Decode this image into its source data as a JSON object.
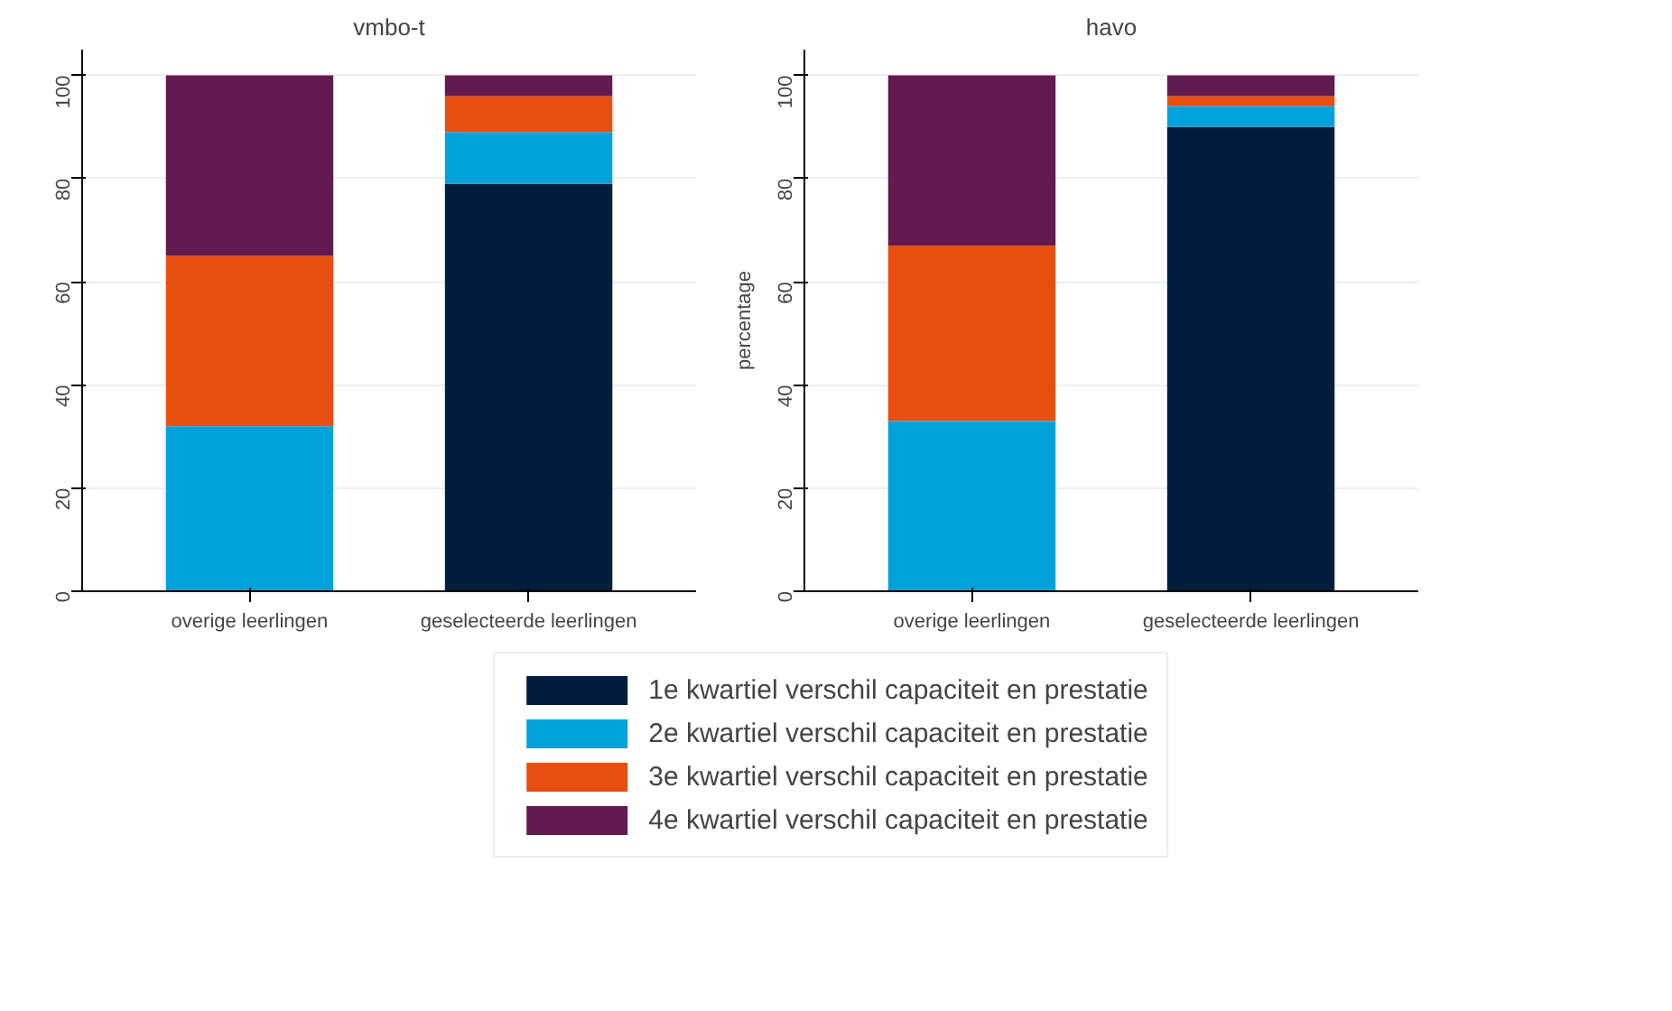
{
  "chart_data": [
    {
      "type": "bar",
      "stacked": true,
      "title": "vmbo-t",
      "categories": [
        "overige leerlingen",
        "geselecteerde leerlingen"
      ],
      "ylim": [
        0,
        105
      ],
      "yticks": [
        0,
        20,
        40,
        60,
        80,
        100
      ],
      "grid": "y",
      "legend": false,
      "series": [
        {
          "color": "#001d3d",
          "values": [
            0,
            79
          ]
        },
        {
          "color": "#00a2db",
          "values": [
            32,
            10
          ]
        },
        {
          "color": "#e84e10",
          "values": [
            33,
            7
          ]
        },
        {
          "color": "#621b50",
          "values": [
            35,
            4
          ]
        }
      ]
    },
    {
      "type": "bar",
      "stacked": true,
      "title": "havo",
      "ylabel": "percentage",
      "categories": [
        "overige leerlingen",
        "geselecteerde leerlingen"
      ],
      "ylim": [
        0,
        105
      ],
      "yticks": [
        0,
        20,
        40,
        60,
        80,
        100
      ],
      "grid": "y",
      "legend": "bottom",
      "series": [
        {
          "name": "1e kwartiel verschil capaciteit en prestatie",
          "color": "#001d3d",
          "values": [
            0,
            90
          ]
        },
        {
          "name": "2e kwartiel verschil capaciteit en prestatie",
          "color": "#00a2db",
          "values": [
            33,
            4
          ]
        },
        {
          "name": "3e kwartiel verschil capaciteit en prestatie",
          "color": "#e84e10",
          "values": [
            34,
            2
          ]
        },
        {
          "name": "4e kwartiel verschil capaciteit en prestatie",
          "color": "#621b50",
          "values": [
            33,
            4
          ]
        }
      ]
    }
  ]
}
